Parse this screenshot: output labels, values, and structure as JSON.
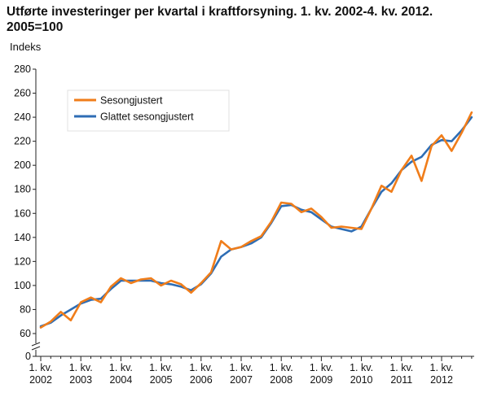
{
  "chart_data": {
    "type": "line",
    "title": "Utførte investeringer per kvartal i kraftforsyning. 1. kv. 2002-4. kv. 2012. 2005=100",
    "ylabel": "Indeks",
    "ylim": [
      0,
      280
    ],
    "yticks": [
      0,
      60,
      80,
      100,
      120,
      140,
      160,
      180,
      200,
      220,
      240,
      260,
      280
    ],
    "axis_break": true,
    "grid": false,
    "legend_position": "top-left",
    "x": [
      "2002K1",
      "2002K2",
      "2002K3",
      "2002K4",
      "2003K1",
      "2003K2",
      "2003K3",
      "2003K4",
      "2004K1",
      "2004K2",
      "2004K3",
      "2004K4",
      "2005K1",
      "2005K2",
      "2005K3",
      "2005K4",
      "2006K1",
      "2006K2",
      "2006K3",
      "2006K4",
      "2007K1",
      "2007K2",
      "2007K3",
      "2007K4",
      "2008K1",
      "2008K2",
      "2008K3",
      "2008K4",
      "2009K1",
      "2009K2",
      "2009K3",
      "2009K4",
      "2010K1",
      "2010K2",
      "2010K3",
      "2010K4",
      "2011K1",
      "2011K2",
      "2011K3",
      "2011K4",
      "2012K1",
      "2012K2",
      "2012K3",
      "2012K4"
    ],
    "xtick_labels": [
      {
        "line1": "1. kv.",
        "line2": "2002"
      },
      {
        "line1": "1. kv.",
        "line2": "2003"
      },
      {
        "line1": "1. kv.",
        "line2": "2004"
      },
      {
        "line1": "1. kv.",
        "line2": "2005"
      },
      {
        "line1": "1. kv.",
        "line2": "2006"
      },
      {
        "line1": "1. kv.",
        "line2": "2007"
      },
      {
        "line1": "1. kv.",
        "line2": "2008"
      },
      {
        "line1": "1. kv.",
        "line2": "2009"
      },
      {
        "line1": "1. kv.",
        "line2": "2010"
      },
      {
        "line1": "1. kv.",
        "line2": "2011"
      },
      {
        "line1": "1. kv.",
        "line2": "2012"
      }
    ],
    "series": [
      {
        "name": "Sesongjustert",
        "color": "#f07d1a",
        "values": [
          65,
          70,
          78,
          71,
          86,
          90,
          86,
          99,
          106,
          102,
          105,
          106,
          100,
          104,
          101,
          94,
          102,
          111,
          137,
          130,
          132,
          137,
          141,
          153,
          169,
          168,
          161,
          164,
          157,
          148,
          149,
          148,
          147,
          164,
          183,
          178,
          196,
          208,
          187,
          216,
          225,
          212,
          227,
          244
        ]
      },
      {
        "name": "Glattet sesongjustert",
        "color": "#2e6db4",
        "values": [
          66,
          69,
          75,
          80,
          85,
          88,
          89,
          97,
          104,
          104,
          104,
          104,
          102,
          101,
          99,
          96,
          101,
          110,
          124,
          130,
          132,
          135,
          140,
          152,
          166,
          167,
          163,
          161,
          155,
          149,
          147,
          145,
          149,
          164,
          178,
          185,
          196,
          203,
          207,
          217,
          221,
          220,
          229,
          240
        ]
      }
    ]
  }
}
